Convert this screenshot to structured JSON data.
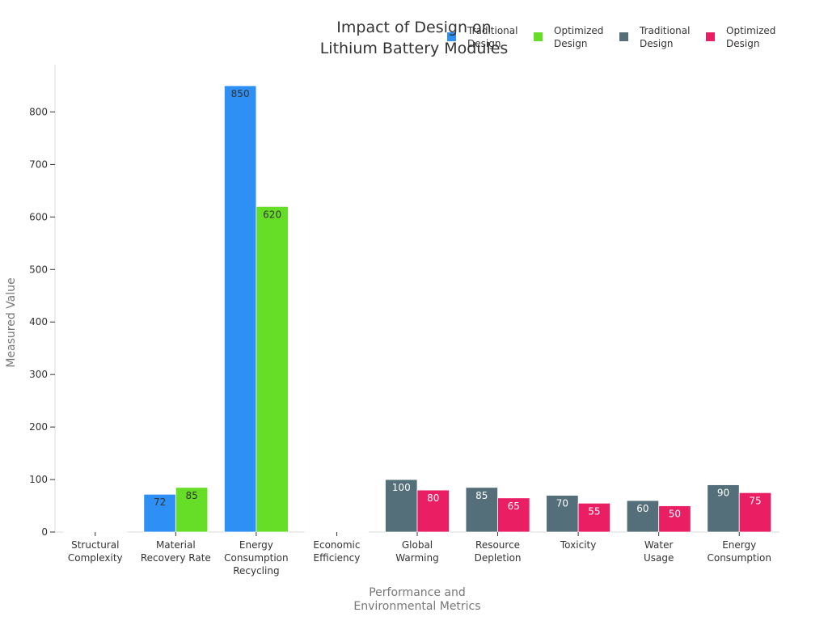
{
  "chart_data": {
    "type": "bar",
    "title_lines": [
      "Impact of Design on",
      "Lithium Battery Modules"
    ],
    "xlabel_lines": [
      "Performance and",
      "Environmental Metrics"
    ],
    "ylabel": "Measured Value",
    "ylim": [
      0,
      890
    ],
    "yticks": [
      0,
      100,
      200,
      300,
      400,
      500,
      600,
      700,
      800
    ],
    "grid": false,
    "legend_position": "top-right",
    "categories": [
      [
        "Structural",
        "Complexity"
      ],
      [
        "Material",
        "Recovery Rate"
      ],
      [
        "Energy",
        "Consumption",
        "Recycling"
      ],
      [
        "Economic",
        "Efficiency"
      ],
      [
        "Global",
        "Warming"
      ],
      [
        "Resource",
        "Depletion"
      ],
      [
        "Toxicity"
      ],
      [
        "Water",
        "Usage"
      ],
      [
        "Energy",
        "Consumption"
      ]
    ],
    "series": [
      {
        "name": "Traditional Design",
        "legend_lines": [
          "Traditional",
          "Design"
        ],
        "color": "#2e90f5",
        "label_color": "#333333",
        "values": [
          0,
          72,
          850,
          0,
          null,
          null,
          null,
          null,
          null
        ]
      },
      {
        "name": "Optimized Design",
        "legend_lines": [
          "Optimized",
          "Design"
        ],
        "color": "#66dd26",
        "label_color": "#333333",
        "values": [
          0,
          85,
          620,
          0,
          null,
          null,
          null,
          null,
          null
        ]
      },
      {
        "name": "Traditional Design",
        "legend_lines": [
          "Traditional",
          "Design"
        ],
        "color": "#546e7a",
        "label_color": "#ffffff",
        "values": [
          null,
          null,
          null,
          null,
          100,
          85,
          70,
          60,
          90
        ]
      },
      {
        "name": "Optimized Design",
        "legend_lines": [
          "Optimized",
          "Design"
        ],
        "color": "#e91e63",
        "label_color": "#ffffff",
        "values": [
          null,
          null,
          null,
          null,
          80,
          65,
          55,
          50,
          75
        ]
      }
    ]
  }
}
